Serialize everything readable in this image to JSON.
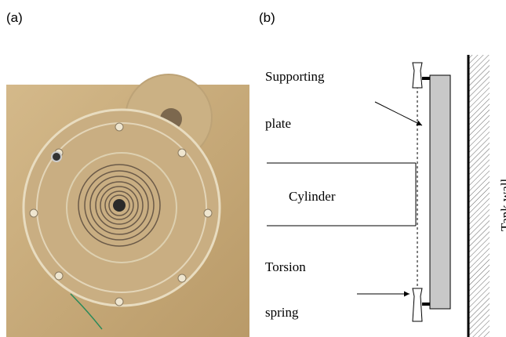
{
  "panel_a": {
    "label": "(a)"
  },
  "panel_b": {
    "label": "(b)",
    "supporting_plate": [
      "Supporting",
      "plate"
    ],
    "cylinder": "Cylinder",
    "torsion_spring": [
      "Torsion",
      "spring"
    ],
    "tank_wall": "Tank wall"
  }
}
